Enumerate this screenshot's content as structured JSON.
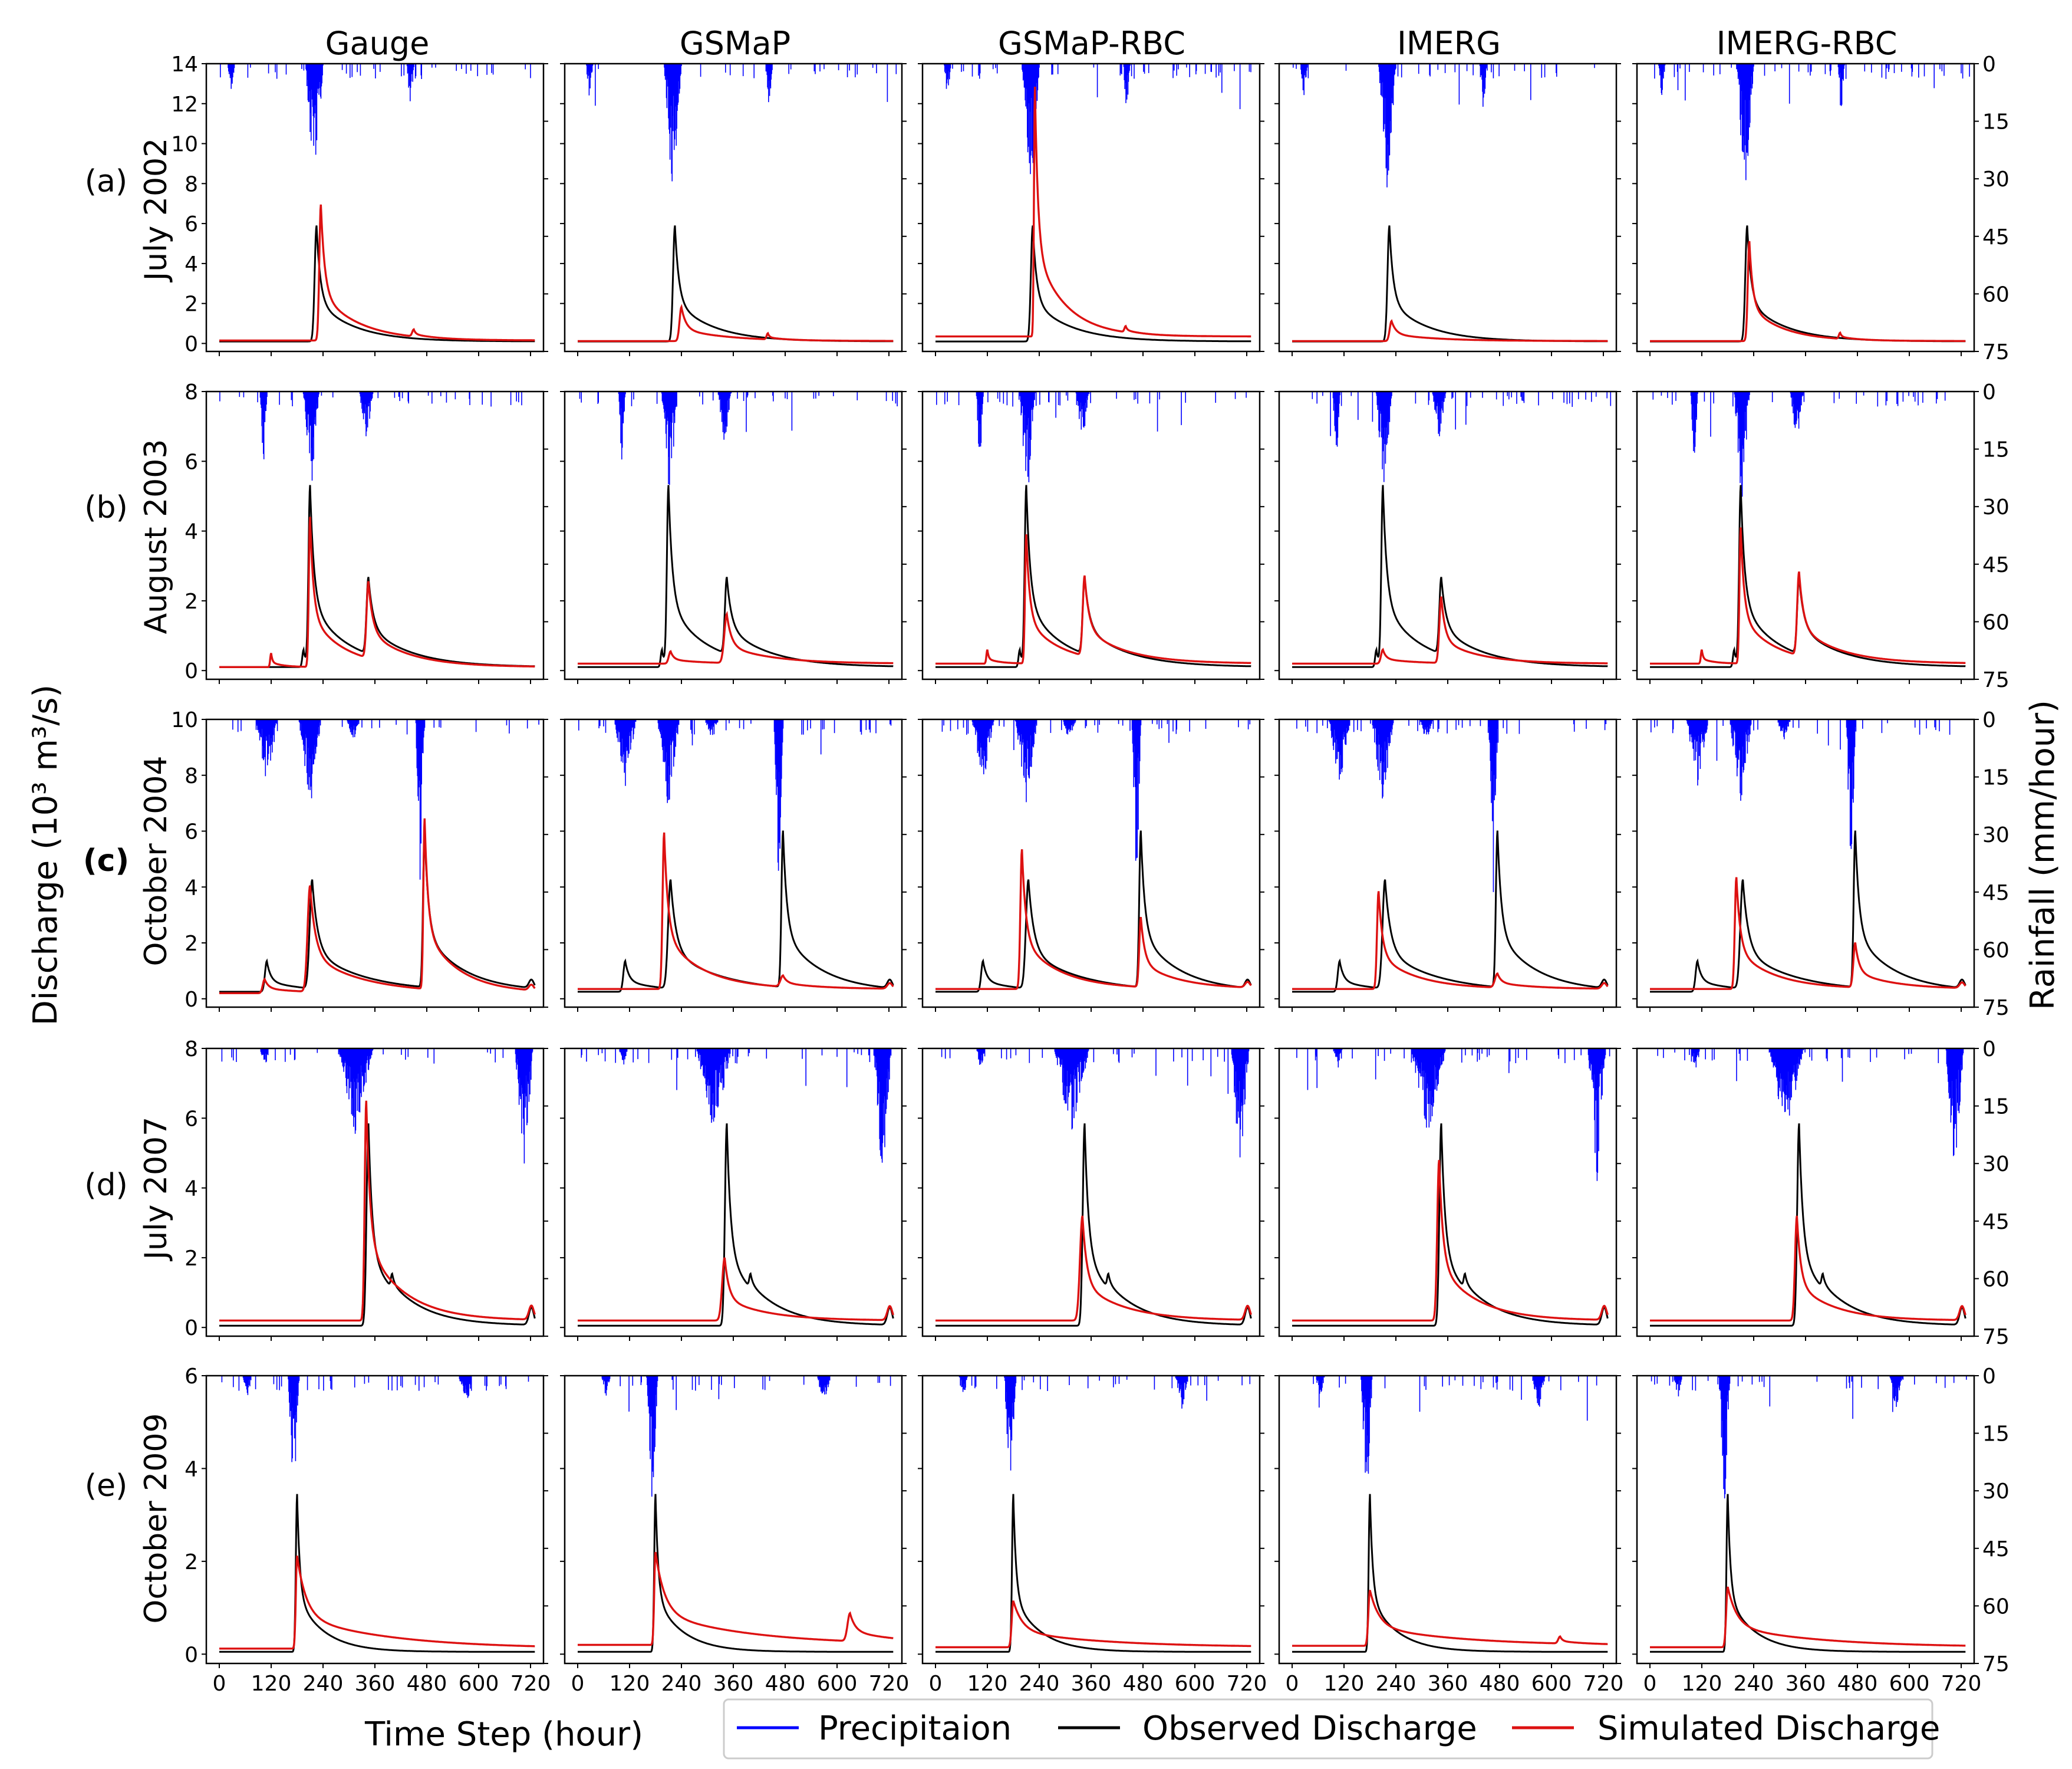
{
  "figure": {
    "y_axis_title": "Discharge (10³ m³/s)",
    "y2_axis_title": "Rainfall (mm/hour)",
    "x_axis_title": "Time Step (hour)"
  },
  "legend": [
    {
      "label": "Precipitaion",
      "color": "#0000ff"
    },
    {
      "label": "Observed Discharge",
      "color": "#000000"
    },
    {
      "label": "Simulated Discharge",
      "color": "#dd1111"
    }
  ],
  "columns": [
    "Gauge",
    "GSMaP",
    "GSMaP-RBC",
    "IMERG",
    "IMERG-RBC"
  ],
  "rows": [
    {
      "letter": "(a)",
      "event": "July 2002",
      "letter_bold": false
    },
    {
      "letter": "(b)",
      "event": "August 2003",
      "letter_bold": false
    },
    {
      "letter": "(c)",
      "event": "October 2004",
      "letter_bold": true
    },
    {
      "letter": "(d)",
      "event": "July 2007",
      "letter_bold": false
    },
    {
      "letter": "(e)",
      "event": "October 2009",
      "letter_bold": false
    }
  ],
  "chart_data": {
    "type": "line",
    "description_note": "5x5 grid of hydrographs; discharge on left axis, rainfall (inverted) on right axis",
    "x": {
      "label": "Time Step (hour)",
      "range": [
        -30,
        750
      ],
      "ticks": [
        0,
        120,
        240,
        360,
        480,
        600,
        720
      ]
    },
    "y2": {
      "label": "Rainfall (mm/hour)",
      "range": [
        0,
        75
      ],
      "inverted": true,
      "ticks": [
        0,
        15,
        30,
        45,
        60,
        75
      ]
    },
    "row_axes": [
      {
        "ylim": [
          -0.4,
          14
        ],
        "yticks": [
          0,
          2,
          4,
          6,
          8,
          10,
          12,
          14
        ]
      },
      {
        "ylim": [
          -0.25,
          8
        ],
        "yticks": [
          0,
          2,
          4,
          6,
          8
        ]
      },
      {
        "ylim": [
          -0.3,
          10
        ],
        "yticks": [
          0,
          2,
          4,
          6,
          8,
          10
        ]
      },
      {
        "ylim": [
          -0.25,
          8
        ],
        "yticks": [
          0,
          2,
          4,
          6,
          8
        ]
      },
      {
        "ylim": [
          -0.2,
          6
        ],
        "yticks": [
          0,
          2,
          4,
          6
        ]
      }
    ],
    "observed": [
      {
        "base": 0.1,
        "peaks": [
          [
            225,
            5.8,
            6,
            25
          ]
        ],
        "end_bump": 0
      },
      {
        "base": 0.1,
        "peaks": [
          [
            210,
            5.1,
            5,
            25
          ],
          [
            345,
            2.2,
            6,
            30
          ],
          [
            195,
            0.5,
            4,
            10
          ]
        ],
        "end_bump": 0
      },
      {
        "base": 0.25,
        "peaks": [
          [
            110,
            1.1,
            6,
            25
          ],
          [
            215,
            3.9,
            8,
            35
          ],
          [
            475,
            5.6,
            5,
            25
          ]
        ],
        "end_bump": 0.3
      },
      {
        "base": 0.05,
        "peaks": [
          [
            345,
            5.8,
            6,
            25
          ],
          [
            400,
            0.4,
            4,
            15
          ]
        ],
        "end_bump": 0.5
      },
      {
        "base": 0.05,
        "peaks": [
          [
            180,
            3.4,
            4,
            18
          ]
        ],
        "end_bump": 0
      }
    ],
    "simulated": [
      [
        {
          "base": 0.15,
          "peaks": [
            [
              235,
              6.8,
              5,
              25
            ],
            [
              450,
              0.35,
              5,
              12
            ]
          ],
          "end_bump": 0
        },
        {
          "base": 0.12,
          "peaks": [
            [
              240,
              1.7,
              6,
              30
            ],
            [
              440,
              0.3,
              4,
              10
            ]
          ],
          "end_bump": 0
        },
        {
          "base": 0.35,
          "peaks": [
            [
              230,
              12.5,
              3,
              20
            ],
            [
              440,
              0.3,
              4,
              10
            ]
          ],
          "end_bump": 0
        },
        {
          "base": 0.12,
          "peaks": [
            [
              230,
              1.0,
              6,
              30
            ]
          ],
          "end_bump": 0
        },
        {
          "base": 0.12,
          "peaks": [
            [
              230,
              5.0,
              5,
              22
            ],
            [
              440,
              0.3,
              4,
              10
            ]
          ],
          "end_bump": 0
        }
      ],
      [
        {
          "base": 0.1,
          "peaks": [
            [
              210,
              4.3,
              4,
              22
            ],
            [
              345,
              2.2,
              6,
              28
            ],
            [
              120,
              0.4,
              3,
              8
            ]
          ],
          "end_bump": 0
        },
        {
          "base": 0.2,
          "peaks": [
            [
              215,
              0.35,
              6,
              20
            ],
            [
              345,
              1.4,
              8,
              30
            ]
          ],
          "end_bump": 0
        },
        {
          "base": 0.2,
          "peaks": [
            [
              210,
              3.7,
              4,
              22
            ],
            [
              345,
              2.3,
              6,
              28
            ],
            [
              120,
              0.4,
              3,
              8
            ]
          ],
          "end_bump": 0
        },
        {
          "base": 0.2,
          "peaks": [
            [
              210,
              0.4,
              6,
              20
            ],
            [
              345,
              1.9,
              6,
              25
            ]
          ],
          "end_bump": 0
        },
        {
          "base": 0.2,
          "peaks": [
            [
              210,
              3.9,
              4,
              22
            ],
            [
              345,
              2.4,
              6,
              28
            ],
            [
              120,
              0.4,
              3,
              8
            ]
          ],
          "end_bump": 0
        }
      ],
      [
        {
          "base": 0.2,
          "peaks": [
            [
              105,
              0.5,
              6,
              25
            ],
            [
              210,
              3.8,
              8,
              35
            ],
            [
              475,
              6.1,
              4,
              22
            ]
          ],
          "end_bump": 0.2
        },
        {
          "base": 0.35,
          "peaks": [
            [
              200,
              5.6,
              5,
              25
            ],
            [
              475,
              0.4,
              8,
              25
            ]
          ],
          "end_bump": 0.2
        },
        {
          "base": 0.35,
          "peaks": [
            [
              200,
              5.0,
              5,
              25
            ],
            [
              475,
              2.5,
              5,
              25
            ]
          ],
          "end_bump": 0.2
        },
        {
          "base": 0.35,
          "peaks": [
            [
              200,
              3.5,
              5,
              25
            ],
            [
              475,
              0.5,
              8,
              25
            ]
          ],
          "end_bump": 0.2
        },
        {
          "base": 0.35,
          "peaks": [
            [
              200,
              4.0,
              5,
              25
            ],
            [
              475,
              1.6,
              6,
              25
            ]
          ],
          "end_bump": 0.2
        }
      ],
      [
        {
          "base": 0.2,
          "peaks": [
            [
              340,
              6.3,
              5,
              25
            ]
          ],
          "end_bump": 0.4
        },
        {
          "base": 0.2,
          "peaks": [
            [
              340,
              1.8,
              8,
              28
            ]
          ],
          "end_bump": 0.4
        },
        {
          "base": 0.2,
          "peaks": [
            [
              340,
              3.0,
              8,
              28
            ]
          ],
          "end_bump": 0.4
        },
        {
          "base": 0.2,
          "peaks": [
            [
              340,
              4.6,
              6,
              25
            ]
          ],
          "end_bump": 0.4
        },
        {
          "base": 0.2,
          "peaks": [
            [
              340,
              3.0,
              6,
              25
            ]
          ],
          "end_bump": 0.4
        }
      ],
      [
        {
          "base": 0.12,
          "peaks": [
            [
              180,
              2.0,
              4,
              60
            ]
          ],
          "end_bump": 0
        },
        {
          "base": 0.2,
          "peaks": [
            [
              180,
              2.0,
              4,
              60
            ],
            [
              630,
              0.6,
              8,
              35
            ]
          ],
          "end_bump": 0
        },
        {
          "base": 0.15,
          "peaks": [
            [
              180,
              1.0,
              5,
              60
            ]
          ],
          "end_bump": 0
        },
        {
          "base": 0.18,
          "peaks": [
            [
              180,
              1.2,
              5,
              60
            ],
            [
              620,
              0.15,
              6,
              15
            ]
          ],
          "end_bump": 0
        },
        {
          "base": 0.15,
          "peaks": [
            [
              180,
              1.3,
              5,
              60
            ]
          ],
          "end_bump": 0
        }
      ]
    ],
    "rainfall": [
      {
        "events": [
          [
            205,
            235,
            30
          ],
          [
            440,
            445,
            12
          ],
          [
            25,
            30,
            8
          ]
        ]
      },
      {
        "events": [
          [
            100,
            105,
            18
          ],
          [
            200,
            225,
            25
          ],
          [
            330,
            350,
            12
          ]
        ]
      },
      {
        "events": [
          [
            90,
            130,
            15
          ],
          [
            190,
            230,
            20
          ],
          [
            460,
            470,
            40
          ],
          [
            300,
            320,
            5
          ]
        ]
      },
      {
        "events": [
          [
            100,
            110,
            5
          ],
          [
            280,
            350,
            20
          ],
          [
            690,
            720,
            30
          ]
        ]
      },
      {
        "events": [
          [
            60,
            70,
            5
          ],
          [
            165,
            180,
            30
          ],
          [
            560,
            580,
            8
          ]
        ]
      }
    ]
  }
}
